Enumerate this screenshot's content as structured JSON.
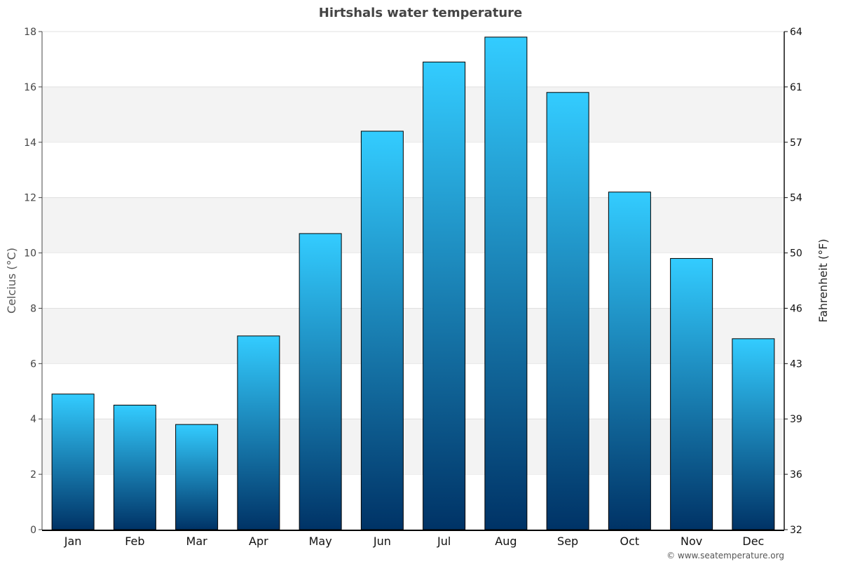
{
  "chart_data": {
    "type": "bar",
    "title": "Hirtshals water temperature",
    "ylabel": "Celcius (°C)",
    "ylabel_right": "Fahrenheit (°F)",
    "categories": [
      "Jan",
      "Feb",
      "Mar",
      "Apr",
      "May",
      "Jun",
      "Jul",
      "Aug",
      "Sep",
      "Oct",
      "Nov",
      "Dec"
    ],
    "values": [
      4.9,
      4.5,
      3.8,
      7.0,
      10.7,
      14.4,
      16.9,
      17.8,
      15.8,
      12.2,
      9.8,
      6.9
    ],
    "ylim": [
      0,
      18
    ],
    "yticks": [
      "0",
      "2",
      "4",
      "6",
      "8",
      "10",
      "12",
      "14",
      "16",
      "18"
    ],
    "yticks_right": [
      "32",
      "36",
      "39",
      "43",
      "46",
      "50",
      "54",
      "57",
      "61",
      "64"
    ],
    "grid": true,
    "colors": {
      "bar_top": "#33ccff",
      "bar_bottom": "#003366",
      "band": "#f3f3f3"
    }
  },
  "footer": {
    "credit": "© www.seatemperature.org"
  }
}
